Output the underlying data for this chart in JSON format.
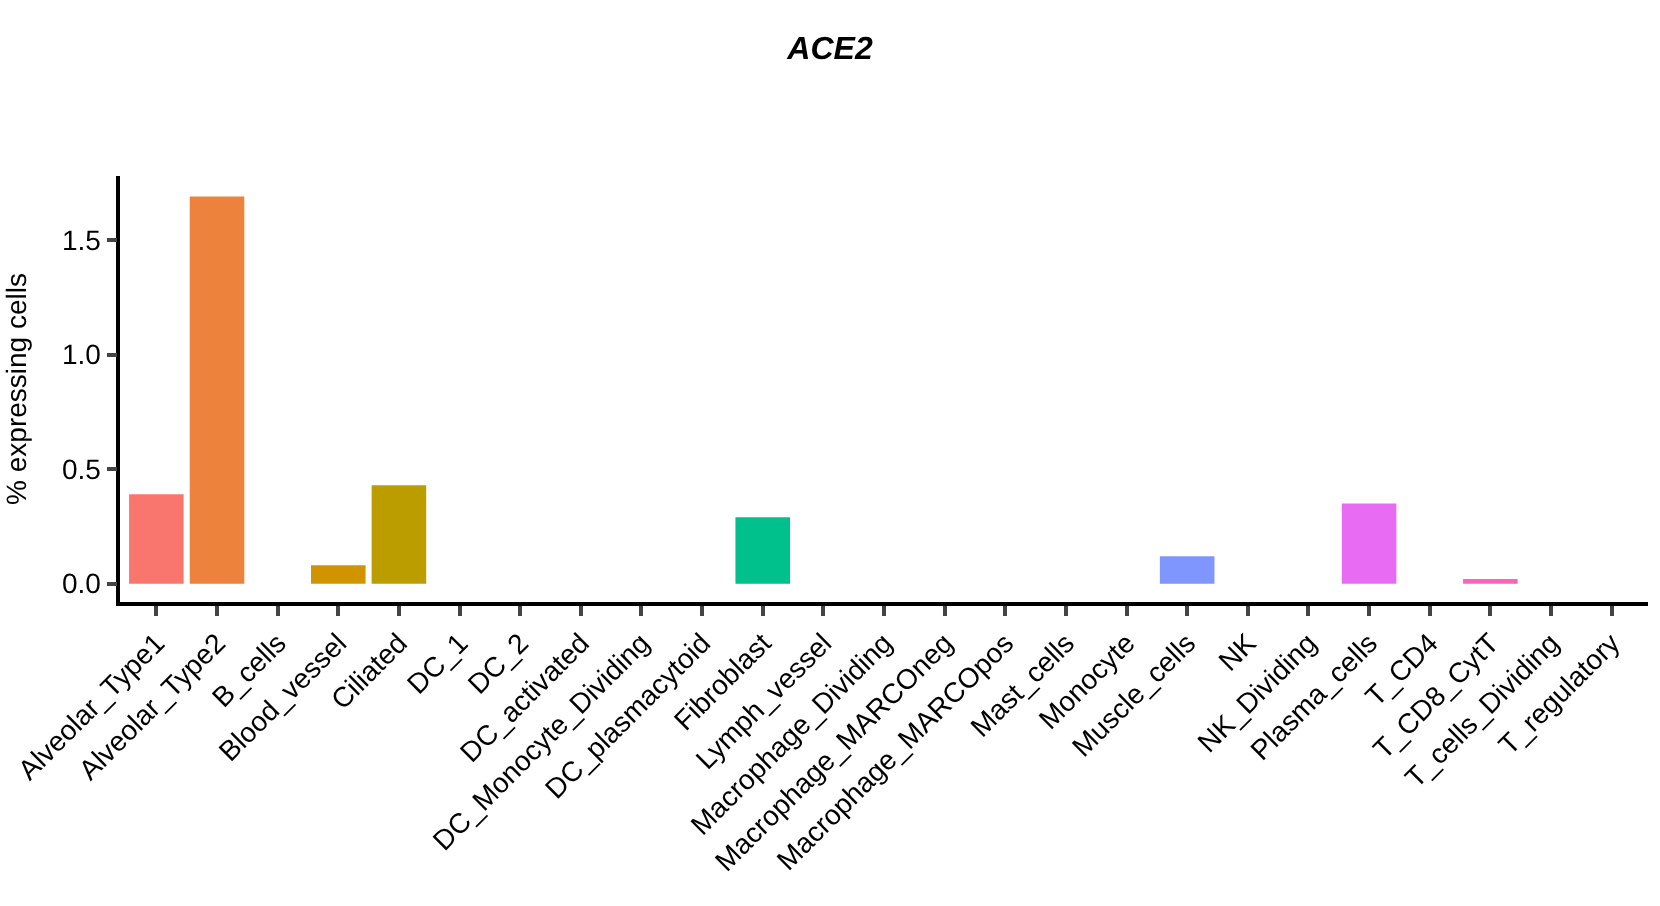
{
  "chart_data": {
    "type": "bar",
    "title": "ACE2",
    "ylabel": "% expressing cells",
    "categories": [
      "Alveolar_Type1",
      "Alveolar_Type2",
      "B_cells",
      "Blood_vessel",
      "Ciliated",
      "DC_1",
      "DC_2",
      "DC_activated",
      "DC_Monocyte_Dividing",
      "DC_plasmacytoid",
      "Fibroblast",
      "Lymph_vessel",
      "Macrophage_Dividing",
      "Macrophage_MARCOneg",
      "Macrophage_MARCOpos",
      "Mast_cells",
      "Monocyte",
      "Muscle_cells",
      "NK",
      "NK_Dividing",
      "Plasma_cells",
      "T_CD4",
      "T_CD8_CytT",
      "T_cells_Dividing",
      "T_regulatory"
    ],
    "values": [
      0.39,
      1.69,
      0,
      0.08,
      0.43,
      0,
      0,
      0,
      0,
      0,
      0.29,
      0,
      0,
      0,
      0,
      0,
      0,
      0.12,
      0,
      0,
      0.35,
      0,
      0.02,
      0,
      0
    ],
    "colors": [
      "#f8766d",
      "#ec823c",
      "#dd8d00",
      "#d09400",
      "#bb9d00",
      "#97a900",
      "#71b000",
      "#2fb600",
      "#00bb4b",
      "#00bf76",
      "#00c08b",
      "#00c0b7",
      "#00bdd1",
      "#00b7e8",
      "#00aefa",
      "#3da1ff",
      "#5d9bff",
      "#7f96ff",
      "#a58aff",
      "#c77cff",
      "#e76bf3",
      "#f564e3",
      "#ff62bc",
      "#ff6a98",
      "#fc717f"
    ],
    "ylim": [
      -0.08,
      1.78
    ],
    "yticks": [
      {
        "value": 0,
        "label": "0.0"
      },
      0.5,
      {
        "value": 1,
        "label": "1.0"
      },
      1.5
    ]
  }
}
